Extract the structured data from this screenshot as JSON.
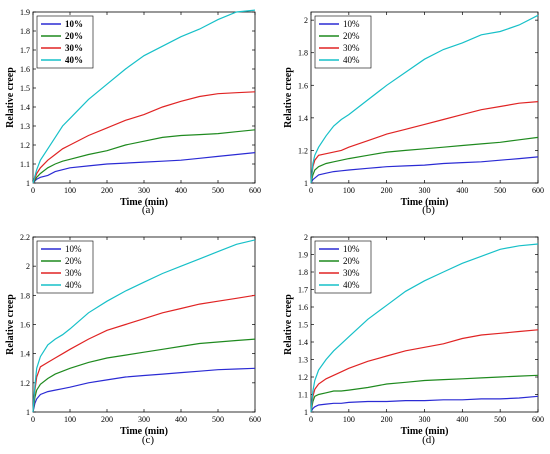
{
  "colors": {
    "10%": "#2b2bd4",
    "20%": "#1f8a1f",
    "30%": "#e02424",
    "40%": "#17c0c8"
  },
  "chart_data": [
    {
      "type": "line",
      "caption": "(a)",
      "xlabel": "Time (min)",
      "ylabel": "Relative creep",
      "xlim": [
        0,
        600
      ],
      "ylim": [
        1,
        1.9
      ],
      "xticks": [
        0,
        100,
        200,
        300,
        400,
        500,
        600
      ],
      "yticks": [
        1,
        1.1,
        1.2,
        1.3,
        1.4,
        1.5,
        1.6,
        1.7,
        1.8,
        1.9
      ],
      "ytick_labels": [
        "1",
        "1.1",
        "1.2",
        "1.3",
        "1.4",
        "1.5",
        "1.6",
        "1.7",
        "1.8",
        "1.9"
      ],
      "legend": "top-left",
      "legend_bold": true,
      "x": [
        0,
        10,
        20,
        40,
        60,
        80,
        100,
        150,
        200,
        250,
        300,
        350,
        400,
        450,
        500,
        550,
        600
      ],
      "series": [
        {
          "name": "10%",
          "values": [
            1.0,
            1.02,
            1.03,
            1.04,
            1.06,
            1.07,
            1.08,
            1.09,
            1.1,
            1.105,
            1.11,
            1.115,
            1.12,
            1.13,
            1.14,
            1.15,
            1.16
          ]
        },
        {
          "name": "20%",
          "values": [
            1.0,
            1.03,
            1.05,
            1.08,
            1.1,
            1.115,
            1.125,
            1.15,
            1.17,
            1.2,
            1.22,
            1.24,
            1.25,
            1.255,
            1.26,
            1.27,
            1.28
          ]
        },
        {
          "name": "30%",
          "values": [
            1.0,
            1.05,
            1.08,
            1.12,
            1.15,
            1.18,
            1.2,
            1.25,
            1.29,
            1.33,
            1.36,
            1.4,
            1.43,
            1.455,
            1.47,
            1.475,
            1.48
          ]
        },
        {
          "name": "40%",
          "values": [
            1.0,
            1.07,
            1.12,
            1.18,
            1.24,
            1.3,
            1.34,
            1.44,
            1.52,
            1.6,
            1.67,
            1.72,
            1.77,
            1.81,
            1.86,
            1.9,
            1.91
          ]
        }
      ]
    },
    {
      "type": "line",
      "caption": "(b)",
      "xlabel": "Time (min)",
      "ylabel": "Relative creep",
      "xlim": [
        0,
        600
      ],
      "ylim": [
        1,
        2.05
      ],
      "xticks": [
        0,
        100,
        200,
        300,
        400,
        500,
        600
      ],
      "yticks": [
        1,
        1.2,
        1.4,
        1.6,
        1.8,
        2
      ],
      "ytick_labels": [
        "1",
        "1.2",
        "1.4",
        "1.6",
        "1.8",
        "2"
      ],
      "legend": "top-left",
      "legend_bold": false,
      "x": [
        0,
        5,
        10,
        20,
        40,
        60,
        80,
        100,
        150,
        200,
        250,
        300,
        350,
        400,
        450,
        500,
        550,
        600
      ],
      "series": [
        {
          "name": "10%",
          "values": [
            1.0,
            1.02,
            1.03,
            1.05,
            1.06,
            1.07,
            1.075,
            1.08,
            1.09,
            1.1,
            1.105,
            1.11,
            1.12,
            1.125,
            1.13,
            1.14,
            1.15,
            1.16
          ]
        },
        {
          "name": "20%",
          "values": [
            1.0,
            1.05,
            1.08,
            1.1,
            1.12,
            1.13,
            1.14,
            1.15,
            1.17,
            1.19,
            1.2,
            1.21,
            1.22,
            1.23,
            1.24,
            1.25,
            1.265,
            1.28
          ]
        },
        {
          "name": "30%",
          "values": [
            1.0,
            1.1,
            1.14,
            1.17,
            1.18,
            1.19,
            1.2,
            1.22,
            1.26,
            1.3,
            1.33,
            1.36,
            1.39,
            1.42,
            1.45,
            1.47,
            1.49,
            1.5
          ]
        },
        {
          "name": "40%",
          "values": [
            1.0,
            1.12,
            1.17,
            1.22,
            1.29,
            1.35,
            1.39,
            1.42,
            1.51,
            1.6,
            1.68,
            1.76,
            1.82,
            1.86,
            1.91,
            1.93,
            1.97,
            2.03
          ]
        }
      ]
    },
    {
      "type": "line",
      "caption": "(c)",
      "xlabel": "Time (min)",
      "ylabel": "Relative creep",
      "xlim": [
        0,
        600
      ],
      "ylim": [
        1,
        2.2
      ],
      "xticks": [
        0,
        100,
        200,
        300,
        400,
        500,
        600
      ],
      "yticks": [
        1,
        1.2,
        1.4,
        1.6,
        1.8,
        2,
        2.2
      ],
      "ytick_labels": [
        "1",
        "1.2",
        "1.4",
        "1.6",
        "1.8",
        "2",
        "2.2"
      ],
      "legend": "top-left",
      "legend_bold": false,
      "x": [
        0,
        5,
        10,
        20,
        40,
        60,
        80,
        100,
        150,
        200,
        250,
        300,
        350,
        400,
        450,
        500,
        550,
        600
      ],
      "series": [
        {
          "name": "10%",
          "values": [
            1.0,
            1.06,
            1.09,
            1.12,
            1.14,
            1.15,
            1.16,
            1.17,
            1.2,
            1.22,
            1.24,
            1.25,
            1.26,
            1.27,
            1.28,
            1.29,
            1.295,
            1.3
          ]
        },
        {
          "name": "20%",
          "values": [
            1.0,
            1.1,
            1.15,
            1.19,
            1.23,
            1.26,
            1.28,
            1.3,
            1.34,
            1.37,
            1.39,
            1.41,
            1.43,
            1.45,
            1.47,
            1.48,
            1.49,
            1.5
          ]
        },
        {
          "name": "30%",
          "values": [
            1.0,
            1.15,
            1.24,
            1.31,
            1.34,
            1.37,
            1.4,
            1.43,
            1.5,
            1.56,
            1.6,
            1.64,
            1.68,
            1.71,
            1.74,
            1.76,
            1.78,
            1.8
          ]
        },
        {
          "name": "40%",
          "values": [
            1.0,
            1.18,
            1.3,
            1.38,
            1.46,
            1.5,
            1.53,
            1.57,
            1.68,
            1.76,
            1.83,
            1.89,
            1.95,
            2.0,
            2.05,
            2.1,
            2.15,
            2.18
          ]
        }
      ]
    },
    {
      "type": "line",
      "caption": "(d)",
      "xlabel": "Time (min)",
      "ylabel": "Relative creep",
      "xlim": [
        0,
        600
      ],
      "ylim": [
        1,
        2
      ],
      "xticks": [
        0,
        100,
        200,
        300,
        400,
        500,
        600
      ],
      "yticks": [
        1,
        1.1,
        1.2,
        1.3,
        1.4,
        1.5,
        1.6,
        1.7,
        1.8,
        1.9,
        2
      ],
      "ytick_labels": [
        "1",
        "1.1",
        "1.2",
        "1.3",
        "1.4",
        "1.5",
        "1.6",
        "1.7",
        "1.8",
        "1.9",
        "2"
      ],
      "legend": "top-left",
      "legend_bold": false,
      "x": [
        0,
        5,
        10,
        20,
        40,
        60,
        80,
        100,
        150,
        200,
        250,
        300,
        350,
        400,
        450,
        500,
        550,
        600
      ],
      "series": [
        {
          "name": "10%",
          "values": [
            1.0,
            1.02,
            1.03,
            1.04,
            1.045,
            1.05,
            1.05,
            1.055,
            1.06,
            1.06,
            1.065,
            1.065,
            1.07,
            1.07,
            1.075,
            1.075,
            1.08,
            1.09
          ]
        },
        {
          "name": "20%",
          "values": [
            1.0,
            1.06,
            1.09,
            1.1,
            1.11,
            1.12,
            1.12,
            1.125,
            1.14,
            1.16,
            1.17,
            1.18,
            1.185,
            1.19,
            1.195,
            1.2,
            1.205,
            1.21
          ]
        },
        {
          "name": "30%",
          "values": [
            1.0,
            1.09,
            1.13,
            1.16,
            1.19,
            1.21,
            1.23,
            1.25,
            1.29,
            1.32,
            1.35,
            1.37,
            1.39,
            1.42,
            1.44,
            1.45,
            1.46,
            1.47
          ]
        },
        {
          "name": "40%",
          "values": [
            1.0,
            1.12,
            1.18,
            1.24,
            1.3,
            1.35,
            1.39,
            1.43,
            1.53,
            1.61,
            1.69,
            1.75,
            1.8,
            1.85,
            1.89,
            1.93,
            1.95,
            1.96
          ]
        }
      ]
    }
  ]
}
